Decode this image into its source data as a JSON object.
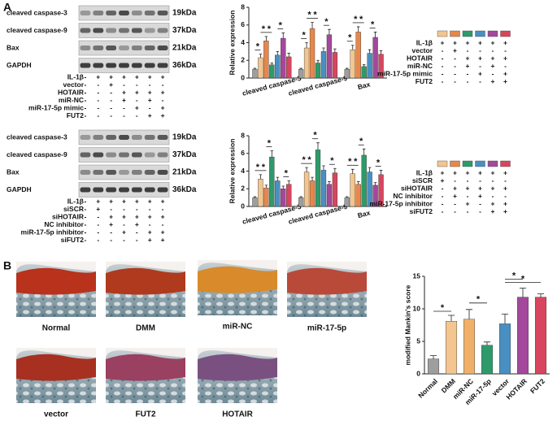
{
  "panel_labels": [
    "A",
    "B"
  ],
  "blots": [
    {
      "rows": [
        {
          "label": "cleaved caspase-3",
          "size": "19kDa"
        },
        {
          "label": "cleaved caspase-9",
          "size": "37kDa"
        },
        {
          "label": "Bax",
          "size": "21kDa"
        },
        {
          "label": "GAPDH",
          "size": "36kDa"
        }
      ],
      "conditions": [
        {
          "label": "IL-1β",
          "marks": [
            "-",
            "+",
            "+",
            "+",
            "+",
            "+",
            "+"
          ]
        },
        {
          "label": "vector",
          "marks": [
            "-",
            "-",
            "+",
            "-",
            "-",
            "-",
            "-"
          ]
        },
        {
          "label": "HOTAIR",
          "marks": [
            "-",
            "-",
            "-",
            "+",
            "+",
            "+",
            "+"
          ]
        },
        {
          "label": "miR-NC",
          "marks": [
            "-",
            "-",
            "-",
            "+",
            "-",
            "+",
            "-"
          ]
        },
        {
          "label": "miR-17-5p mimic",
          "marks": [
            "-",
            "-",
            "-",
            "-",
            "+",
            "-",
            "+"
          ]
        },
        {
          "label": "FUT2",
          "marks": [
            "-",
            "-",
            "-",
            "-",
            "-",
            "+",
            "+"
          ]
        }
      ]
    },
    {
      "rows": [
        {
          "label": "cleaved caspase-3",
          "size": "19kDa"
        },
        {
          "label": "cleaved caspase-9",
          "size": "37kDa"
        },
        {
          "label": "Bax",
          "size": "21kDa"
        },
        {
          "label": "GAPDH",
          "size": "36kDa"
        }
      ],
      "conditions": [
        {
          "label": "IL-1β",
          "marks": [
            "-",
            "+",
            "+",
            "+",
            "+",
            "+",
            "+"
          ]
        },
        {
          "label": "siSCR",
          "marks": [
            "-",
            "+",
            "-",
            "-",
            "-",
            "-",
            "-"
          ]
        },
        {
          "label": "siHOTAIR",
          "marks": [
            "-",
            "-",
            "+",
            "+",
            "+",
            "+",
            "+"
          ]
        },
        {
          "label": "NC inhibitor",
          "marks": [
            "-",
            "-",
            "+",
            "-",
            "+",
            "-",
            "-"
          ]
        },
        {
          "label": "miR-17-5p inhibitor",
          "marks": [
            "-",
            "-",
            "-",
            "+",
            "-",
            "+",
            "+"
          ]
        },
        {
          "label": "siFUT2",
          "marks": [
            "-",
            "-",
            "-",
            "-",
            "-",
            "+",
            "+"
          ]
        }
      ]
    }
  ],
  "chart_data": [
    {
      "type": "bar",
      "ylabel": "Relative expression",
      "categories": [
        "cleaved caspase-3",
        "cleaved caspase-9",
        "Bax"
      ],
      "series": [
        {
          "color": "#9e9e9e",
          "values": [
            1.0,
            1.0,
            1.0
          ],
          "errors": [
            0.1,
            0.1,
            0.1
          ]
        },
        {
          "color": "#f3c58f",
          "values": [
            2.3,
            3.4,
            3.2
          ],
          "errors": [
            0.4,
            0.6,
            0.5
          ]
        },
        {
          "color": "#e8874a",
          "values": [
            4.2,
            5.6,
            5.2
          ],
          "errors": [
            0.5,
            0.7,
            0.6
          ]
        },
        {
          "color": "#2e9a6a",
          "values": [
            1.5,
            1.7,
            1.3
          ],
          "errors": [
            0.2,
            0.3,
            0.2
          ]
        },
        {
          "color": "#4a8fc2",
          "values": [
            2.6,
            3.0,
            2.8
          ],
          "errors": [
            0.4,
            0.4,
            0.4
          ]
        },
        {
          "color": "#a4489c",
          "values": [
            4.5,
            4.9,
            4.6
          ],
          "errors": [
            0.6,
            0.6,
            0.6
          ]
        },
        {
          "color": "#d8455e",
          "values": [
            2.4,
            2.9,
            2.7
          ],
          "errors": [
            0.4,
            0.4,
            0.4
          ]
        }
      ],
      "ylim": [
        0,
        8
      ],
      "yticks": [
        0,
        2,
        4,
        6,
        8
      ],
      "significance_label": "*"
    },
    {
      "type": "bar",
      "ylabel": "Relative expression",
      "categories": [
        "cleaved caspase-3",
        "cleaved caspase-9",
        "Bax"
      ],
      "series": [
        {
          "color": "#9e9e9e",
          "values": [
            1.0,
            1.0,
            1.0
          ],
          "errors": [
            0.1,
            0.1,
            0.1
          ]
        },
        {
          "color": "#f3c58f",
          "values": [
            3.1,
            3.9,
            3.7
          ],
          "errors": [
            0.5,
            0.5,
            0.5
          ]
        },
        {
          "color": "#e8874a",
          "values": [
            2.1,
            2.9,
            2.5
          ],
          "errors": [
            0.3,
            0.4,
            0.3
          ]
        },
        {
          "color": "#2e9a6a",
          "values": [
            5.6,
            6.4,
            5.8
          ],
          "errors": [
            0.7,
            0.8,
            0.7
          ]
        },
        {
          "color": "#4a8fc2",
          "values": [
            2.9,
            4.1,
            3.9
          ],
          "errors": [
            0.4,
            0.5,
            0.5
          ]
        },
        {
          "color": "#a4489c",
          "values": [
            2.0,
            2.5,
            2.4
          ],
          "errors": [
            0.3,
            0.3,
            0.3
          ]
        },
        {
          "color": "#d8455e",
          "values": [
            2.5,
            3.8,
            3.6
          ],
          "errors": [
            0.4,
            0.5,
            0.5
          ]
        }
      ],
      "ylim": [
        0,
        8
      ],
      "yticks": [
        0,
        2,
        4,
        6,
        8
      ],
      "significance_label": "*"
    },
    {
      "type": "bar",
      "ylabel": "modified Mankin's score",
      "categories": [
        "Normal",
        "DMM",
        "miR-NC",
        "miR-17-5p",
        "vector",
        "HOTAIR",
        "FUT2"
      ],
      "values": [
        2.3,
        8.1,
        8.4,
        4.4,
        7.7,
        11.8,
        11.8
      ],
      "errors": [
        0.5,
        0.9,
        1.5,
        0.5,
        1.5,
        1.4,
        0.5
      ],
      "colors": [
        "#9e9e9e",
        "#f3c58f",
        "#f0b06a",
        "#2e9a6a",
        "#4a8fc2",
        "#a4489c",
        "#d8455e"
      ],
      "ylim": [
        0,
        15
      ],
      "yticks": [
        0,
        5,
        10,
        15
      ],
      "significance_label": "*"
    }
  ],
  "legends": [
    {
      "conditions": [
        {
          "label": "IL-1β",
          "marks": [
            "+",
            "+",
            "+",
            "+",
            "+",
            "+"
          ]
        },
        {
          "label": "vector",
          "marks": [
            "-",
            "+",
            "-",
            "-",
            "-",
            "-"
          ]
        },
        {
          "label": "HOTAIR",
          "marks": [
            "-",
            "-",
            "+",
            "+",
            "+",
            "+"
          ]
        },
        {
          "label": "miR-NC",
          "marks": [
            "-",
            "-",
            "+",
            "-",
            "+",
            "-"
          ]
        },
        {
          "label": "miR-17-5p mimic",
          "marks": [
            "-",
            "-",
            "-",
            "+",
            "-",
            "+"
          ]
        },
        {
          "label": "FUT2",
          "marks": [
            "-",
            "-",
            "-",
            "-",
            "+",
            "+"
          ]
        }
      ]
    },
    {
      "conditions": [
        {
          "label": "IL-1β",
          "marks": [
            "+",
            "+",
            "+",
            "+",
            "+",
            "+"
          ]
        },
        {
          "label": "siSCR",
          "marks": [
            "+",
            "-",
            "-",
            "-",
            "-",
            "-"
          ]
        },
        {
          "label": "siHOTAIR",
          "marks": [
            "-",
            "+",
            "+",
            "+",
            "+",
            "+"
          ]
        },
        {
          "label": "NC inhibitor",
          "marks": [
            "-",
            "+",
            "-",
            "+",
            "-",
            "-"
          ]
        },
        {
          "label": "miR-17-5p inhibitor",
          "marks": [
            "-",
            "-",
            "+",
            "-",
            "+",
            "+"
          ]
        },
        {
          "label": "siFUT2",
          "marks": [
            "-",
            "-",
            "-",
            "-",
            "+",
            "+"
          ]
        }
      ]
    }
  ],
  "histology": [
    {
      "label": "Normal"
    },
    {
      "label": "DMM"
    },
    {
      "label": "miR-NC"
    },
    {
      "label": "miR-17-5p"
    },
    {
      "label": "vector"
    },
    {
      "label": "FUT2"
    },
    {
      "label": "HOTAIR"
    }
  ]
}
